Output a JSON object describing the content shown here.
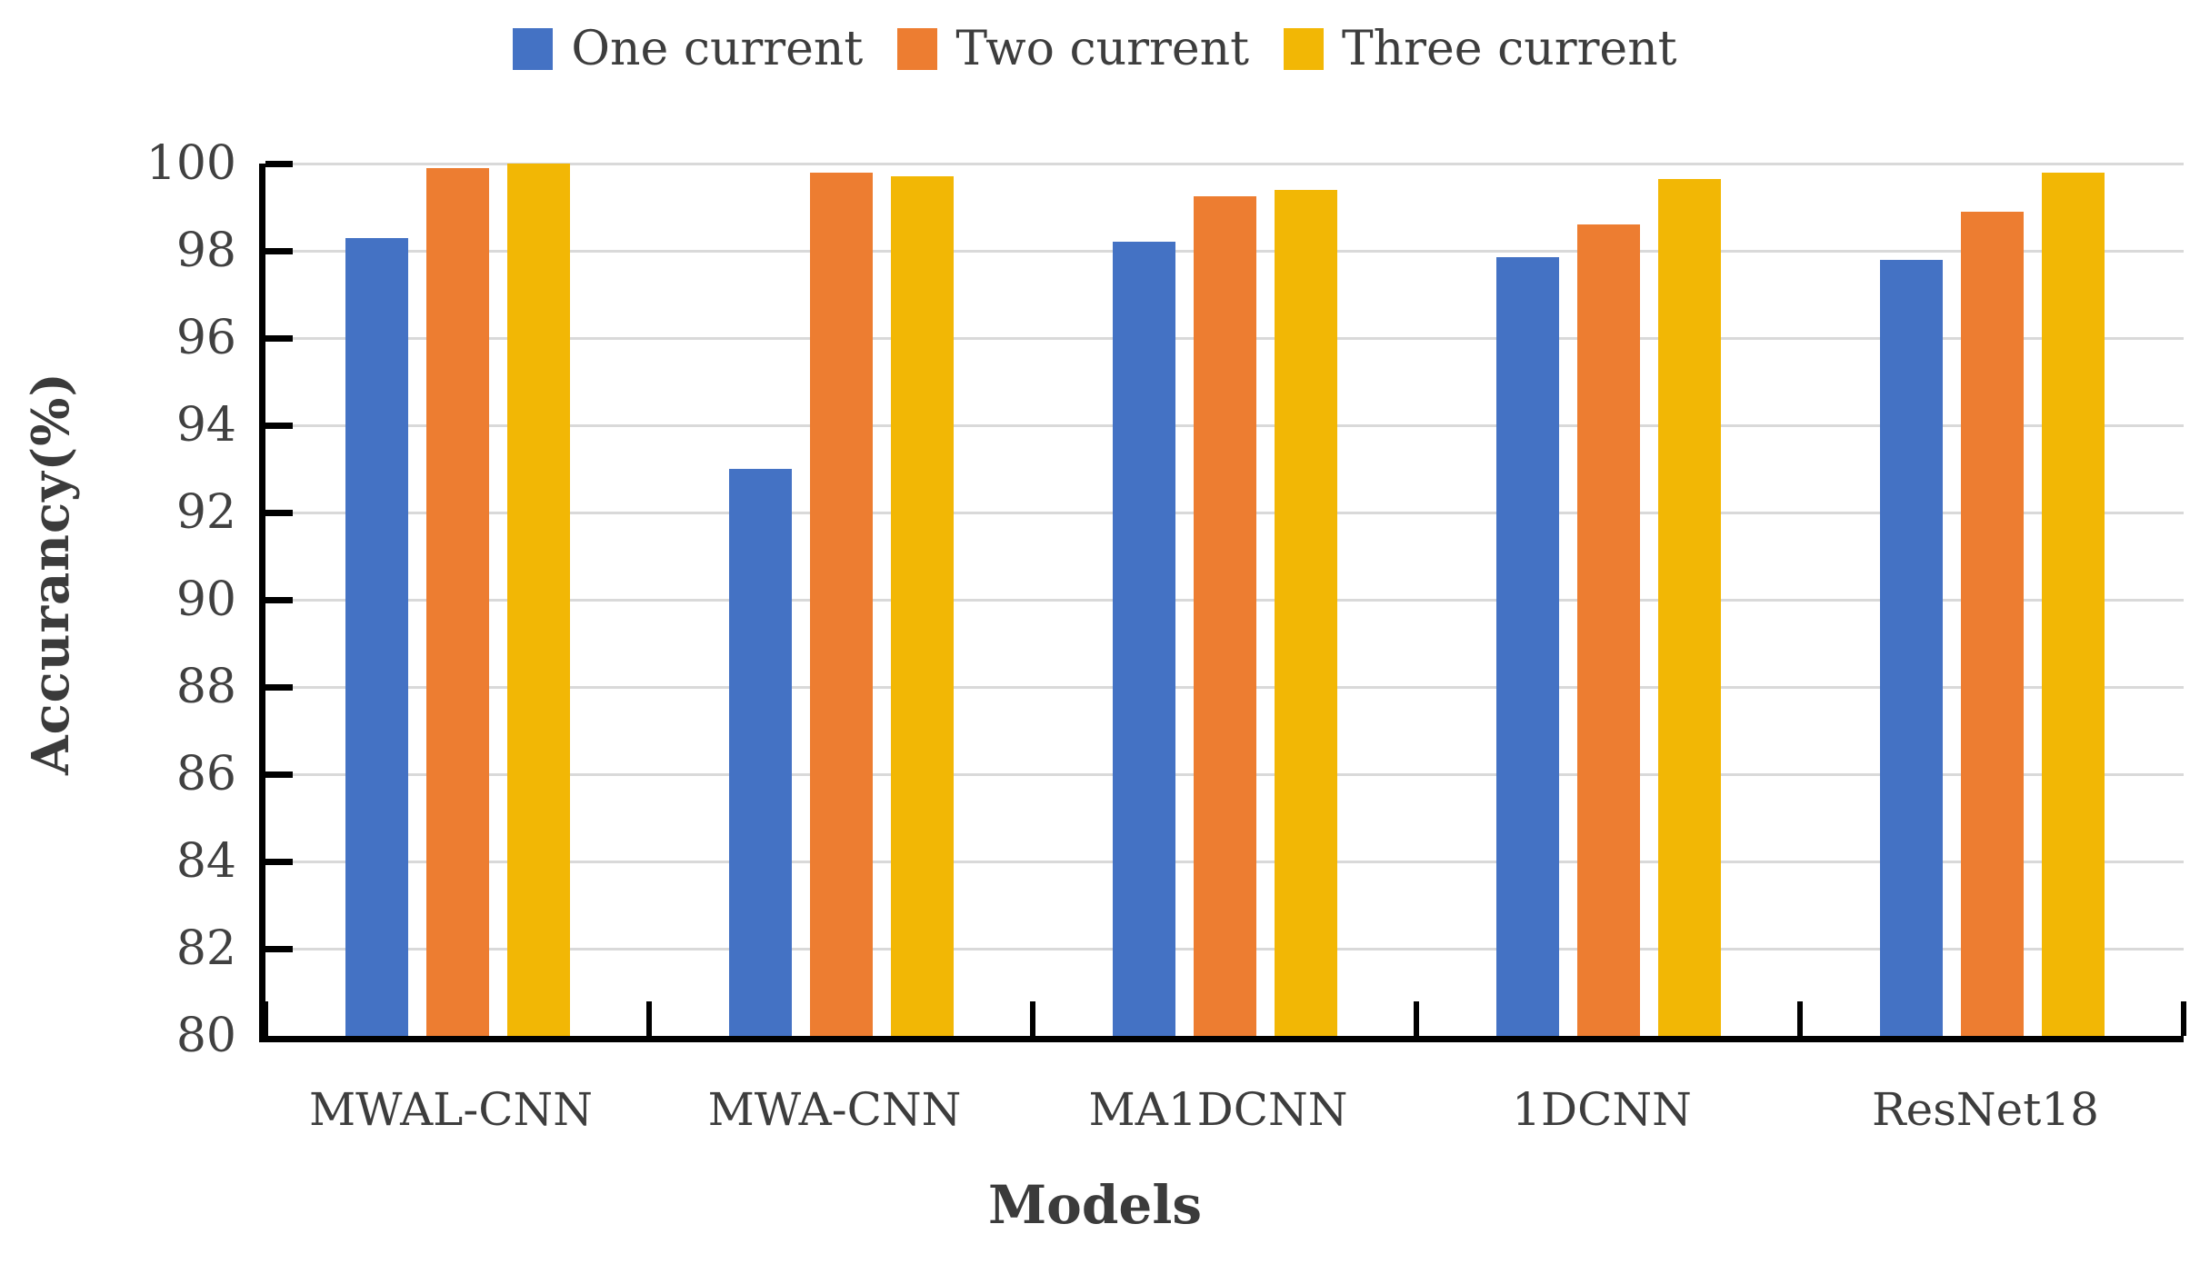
{
  "legend": {
    "items": [
      {
        "label": "One current",
        "color": "#4472C4"
      },
      {
        "label": "Two current",
        "color": "#ED7D31"
      },
      {
        "label": "Three current",
        "color": "#F2B705"
      }
    ]
  },
  "axes": {
    "y_tick_labels": [
      "100",
      "98",
      "96",
      "94",
      "92",
      "90",
      "88",
      "86",
      "84",
      "82",
      "80"
    ],
    "gridline_color": "#d9d9d9",
    "axis_color": "#000000"
  },
  "chart_data": {
    "type": "bar",
    "title": "",
    "xlabel": "Models",
    "ylabel": "Accurancy(%)",
    "ylim": [
      80,
      100
    ],
    "ytick_step": 2,
    "grid": "horizontal",
    "legend_position": "top-center",
    "categories": [
      "MWAL-CNN",
      "MWA-CNN",
      "MA1DCNN",
      "1DCNN",
      "ResNet18"
    ],
    "series": [
      {
        "name": "One current",
        "color": "#4472C4",
        "values": [
          98.3,
          93.0,
          98.2,
          97.85,
          97.8
        ]
      },
      {
        "name": "Two current",
        "color": "#ED7D31",
        "values": [
          99.9,
          99.8,
          99.25,
          98.6,
          98.9
        ]
      },
      {
        "name": "Three current",
        "color": "#F2B705",
        "values": [
          100.0,
          99.7,
          99.4,
          99.65,
          99.8
        ]
      }
    ]
  }
}
